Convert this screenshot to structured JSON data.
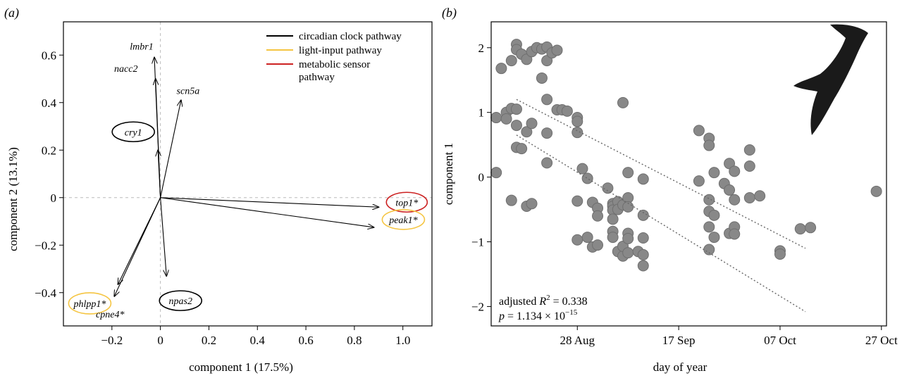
{
  "chart_data": [
    {
      "type": "biplot",
      "panel_label": "(a)",
      "xlabel": "component 1 (17.5%)",
      "ylabel": "component 2 (13.1%)",
      "xlim": [
        -0.4,
        1.12
      ],
      "ylim": [
        -0.54,
        0.74
      ],
      "xticks": [
        {
          "v": -0.2,
          "label": "−0.2"
        },
        {
          "v": 0,
          "label": "0"
        },
        {
          "v": 0.2,
          "label": "0.2"
        },
        {
          "v": 0.4,
          "label": "0.4"
        },
        {
          "v": 0.6,
          "label": "0.6"
        },
        {
          "v": 0.8,
          "label": "0.8"
        },
        {
          "v": 1.0,
          "label": "1.0"
        }
      ],
      "yticks": [
        {
          "v": -0.4,
          "label": "−0.4"
        },
        {
          "v": -0.2,
          "label": "−0.2"
        },
        {
          "v": 0,
          "label": "0"
        },
        {
          "v": 0.2,
          "label": "0.2"
        },
        {
          "v": 0.4,
          "label": "0.4"
        },
        {
          "v": 0.6,
          "label": "0.6"
        }
      ],
      "legend": {
        "placement": "top-right",
        "items": [
          {
            "label": "circadian clock pathway",
            "color": "#000000"
          },
          {
            "label": "light-input pathway",
            "color": "#f5c542"
          },
          {
            "label": "metabolic sensor pathway",
            "lines": [
              "metabolic sensor",
              "pathway"
            ],
            "color": "#cc2222"
          }
        ]
      },
      "loadings": [
        {
          "gene": "lmbr1",
          "x": -0.025,
          "y": 0.59,
          "pathway": "none"
        },
        {
          "gene": "nacc2",
          "x": -0.02,
          "y": 0.5,
          "pathway": "none"
        },
        {
          "gene": "scn5a",
          "x": 0.085,
          "y": 0.41,
          "pathway": "none"
        },
        {
          "gene": "cry1",
          "x": -0.01,
          "y": 0.2,
          "pathway": "circadian"
        },
        {
          "gene": "top1*",
          "x": 0.9,
          "y": -0.04,
          "pathway": "metabolic"
        },
        {
          "gene": "peak1*",
          "x": 0.88,
          "y": -0.125,
          "pathway": "light"
        },
        {
          "gene": "npas2",
          "x": 0.025,
          "y": -0.33,
          "pathway": "circadian"
        },
        {
          "gene": "phlpp1*",
          "x": -0.175,
          "y": -0.365,
          "pathway": "light"
        },
        {
          "gene": "cpne4*",
          "x": -0.19,
          "y": -0.415,
          "pathway": "none"
        }
      ]
    },
    {
      "type": "scatter",
      "panel_label": "(b)",
      "xlabel": "day of year",
      "ylabel": "component 1",
      "xlim": [
        "2017-08-11",
        "2017-10-28"
      ],
      "ylim": [
        -2.3,
        2.4
      ],
      "xticks": [
        {
          "date": "2017-08-28",
          "label": "28 Aug"
        },
        {
          "date": "2017-09-17",
          "label": "17 Sep"
        },
        {
          "date": "2017-10-07",
          "label": "07 Oct"
        },
        {
          "date": "2017-10-27",
          "label": "27 Oct"
        }
      ],
      "yticks": [
        {
          "v": -2,
          "label": "−2"
        },
        {
          "v": -1,
          "label": "−1"
        },
        {
          "v": 0,
          "label": "0"
        },
        {
          "v": 1,
          "label": "1"
        },
        {
          "v": 2,
          "label": "2"
        }
      ],
      "point_color": "#888888",
      "annotation": {
        "r2_label": "adjusted ",
        "r2_symbol": "R",
        "r2_exp": "2",
        "r2_value": " = 0.338",
        "p_symbol": "p",
        "p_value": " = 1.134 × 10",
        "p_exp": "−15"
      },
      "interval_lines": [
        {
          "from": {
            "date": "2017-08-16",
            "y": 1.2
          },
          "to": {
            "date": "2017-10-12",
            "y": -1.1
          }
        },
        {
          "from": {
            "date": "2017-08-16",
            "y": 0.65
          },
          "to": {
            "date": "2017-10-12",
            "y": -2.08
          }
        }
      ],
      "points": [
        {
          "date": "2017-08-12",
          "y": 0.92
        },
        {
          "date": "2017-08-12",
          "y": 0.07
        },
        {
          "date": "2017-08-13",
          "y": 1.68
        },
        {
          "date": "2017-08-14",
          "y": 1.0
        },
        {
          "date": "2017-08-14",
          "y": 0.9
        },
        {
          "date": "2017-08-15",
          "y": 1.8
        },
        {
          "date": "2017-08-15",
          "y": -0.36
        },
        {
          "date": "2017-08-15",
          "y": 1.06
        },
        {
          "date": "2017-08-16",
          "y": 2.05
        },
        {
          "date": "2017-08-16",
          "y": 1.97
        },
        {
          "date": "2017-08-16",
          "y": 0.8
        },
        {
          "date": "2017-08-16",
          "y": 0.46
        },
        {
          "date": "2017-08-16",
          "y": 1.05
        },
        {
          "date": "2017-08-17",
          "y": 0.44
        },
        {
          "date": "2017-08-17",
          "y": 1.9
        },
        {
          "date": "2017-08-18",
          "y": 0.7
        },
        {
          "date": "2017-08-18",
          "y": 1.82
        },
        {
          "date": "2017-08-18",
          "y": -0.45
        },
        {
          "date": "2017-08-19",
          "y": 1.94
        },
        {
          "date": "2017-08-19",
          "y": 0.83
        },
        {
          "date": "2017-08-19",
          "y": -0.41
        },
        {
          "date": "2017-08-20",
          "y": 2.0
        },
        {
          "date": "2017-08-21",
          "y": 1.98
        },
        {
          "date": "2017-08-21",
          "y": 1.53
        },
        {
          "date": "2017-08-22",
          "y": 2.01
        },
        {
          "date": "2017-08-22",
          "y": 1.8
        },
        {
          "date": "2017-08-22",
          "y": 1.2
        },
        {
          "date": "2017-08-22",
          "y": 0.68
        },
        {
          "date": "2017-08-22",
          "y": 0.22
        },
        {
          "date": "2017-08-23",
          "y": 1.92
        },
        {
          "date": "2017-08-24",
          "y": 1.96
        },
        {
          "date": "2017-08-24",
          "y": 1.04
        },
        {
          "date": "2017-08-25",
          "y": 1.04
        },
        {
          "date": "2017-08-26",
          "y": 1.02
        },
        {
          "date": "2017-08-28",
          "y": 0.92
        },
        {
          "date": "2017-08-28",
          "y": 0.86
        },
        {
          "date": "2017-08-28",
          "y": 0.69
        },
        {
          "date": "2017-08-28",
          "y": -0.37
        },
        {
          "date": "2017-08-28",
          "y": -0.97
        },
        {
          "date": "2017-08-29",
          "y": 0.13
        },
        {
          "date": "2017-08-30",
          "y": -0.02
        },
        {
          "date": "2017-08-30",
          "y": -0.93
        },
        {
          "date": "2017-08-31",
          "y": -0.39
        },
        {
          "date": "2017-08-31",
          "y": -1.08
        },
        {
          "date": "2017-09-01",
          "y": -0.48
        },
        {
          "date": "2017-09-01",
          "y": -0.6
        },
        {
          "date": "2017-09-01",
          "y": -1.05
        },
        {
          "date": "2017-09-03",
          "y": -0.17
        },
        {
          "date": "2017-09-04",
          "y": -0.41
        },
        {
          "date": "2017-09-04",
          "y": -0.45
        },
        {
          "date": "2017-09-04",
          "y": -0.51
        },
        {
          "date": "2017-09-04",
          "y": -0.65
        },
        {
          "date": "2017-09-04",
          "y": -0.84
        },
        {
          "date": "2017-09-04",
          "y": -0.93
        },
        {
          "date": "2017-09-05",
          "y": -0.38
        },
        {
          "date": "2017-09-05",
          "y": -0.5
        },
        {
          "date": "2017-09-05",
          "y": -1.15
        },
        {
          "date": "2017-09-06",
          "y": 1.15
        },
        {
          "date": "2017-09-06",
          "y": -0.43
        },
        {
          "date": "2017-09-06",
          "y": -1.22
        },
        {
          "date": "2017-09-06",
          "y": -1.07
        },
        {
          "date": "2017-09-07",
          "y": 0.07
        },
        {
          "date": "2017-09-07",
          "y": -0.32
        },
        {
          "date": "2017-09-07",
          "y": -0.46
        },
        {
          "date": "2017-09-07",
          "y": -0.87
        },
        {
          "date": "2017-09-07",
          "y": -0.95
        },
        {
          "date": "2017-09-07",
          "y": -1.17
        },
        {
          "date": "2017-09-09",
          "y": -1.15
        },
        {
          "date": "2017-09-10",
          "y": -0.03
        },
        {
          "date": "2017-09-10",
          "y": -0.59
        },
        {
          "date": "2017-09-10",
          "y": -0.94
        },
        {
          "date": "2017-09-10",
          "y": -1.2
        },
        {
          "date": "2017-09-10",
          "y": -1.37
        },
        {
          "date": "2017-09-21",
          "y": 0.72
        },
        {
          "date": "2017-09-21",
          "y": -0.06
        },
        {
          "date": "2017-09-23",
          "y": 0.6
        },
        {
          "date": "2017-09-23",
          "y": 0.49
        },
        {
          "date": "2017-09-23",
          "y": -0.35
        },
        {
          "date": "2017-09-23",
          "y": -0.53
        },
        {
          "date": "2017-09-23",
          "y": -0.77
        },
        {
          "date": "2017-09-23",
          "y": -1.12
        },
        {
          "date": "2017-09-24",
          "y": 0.07
        },
        {
          "date": "2017-09-24",
          "y": -0.59
        },
        {
          "date": "2017-09-24",
          "y": -0.93
        },
        {
          "date": "2017-09-26",
          "y": -0.1
        },
        {
          "date": "2017-09-27",
          "y": 0.21
        },
        {
          "date": "2017-09-27",
          "y": -0.2
        },
        {
          "date": "2017-09-27",
          "y": -0.87
        },
        {
          "date": "2017-09-28",
          "y": 0.09
        },
        {
          "date": "2017-09-28",
          "y": -0.35
        },
        {
          "date": "2017-09-28",
          "y": -0.77
        },
        {
          "date": "2017-09-28",
          "y": -0.88
        },
        {
          "date": "2017-10-01",
          "y": 0.42
        },
        {
          "date": "2017-10-01",
          "y": 0.17
        },
        {
          "date": "2017-10-01",
          "y": -0.32
        },
        {
          "date": "2017-10-03",
          "y": -0.29
        },
        {
          "date": "2017-10-07",
          "y": -1.14
        },
        {
          "date": "2017-10-07",
          "y": -1.19
        },
        {
          "date": "2017-10-11",
          "y": -0.8
        },
        {
          "date": "2017-10-13",
          "y": -0.78
        },
        {
          "date": "2017-10-26",
          "y": -0.22
        }
      ]
    }
  ]
}
